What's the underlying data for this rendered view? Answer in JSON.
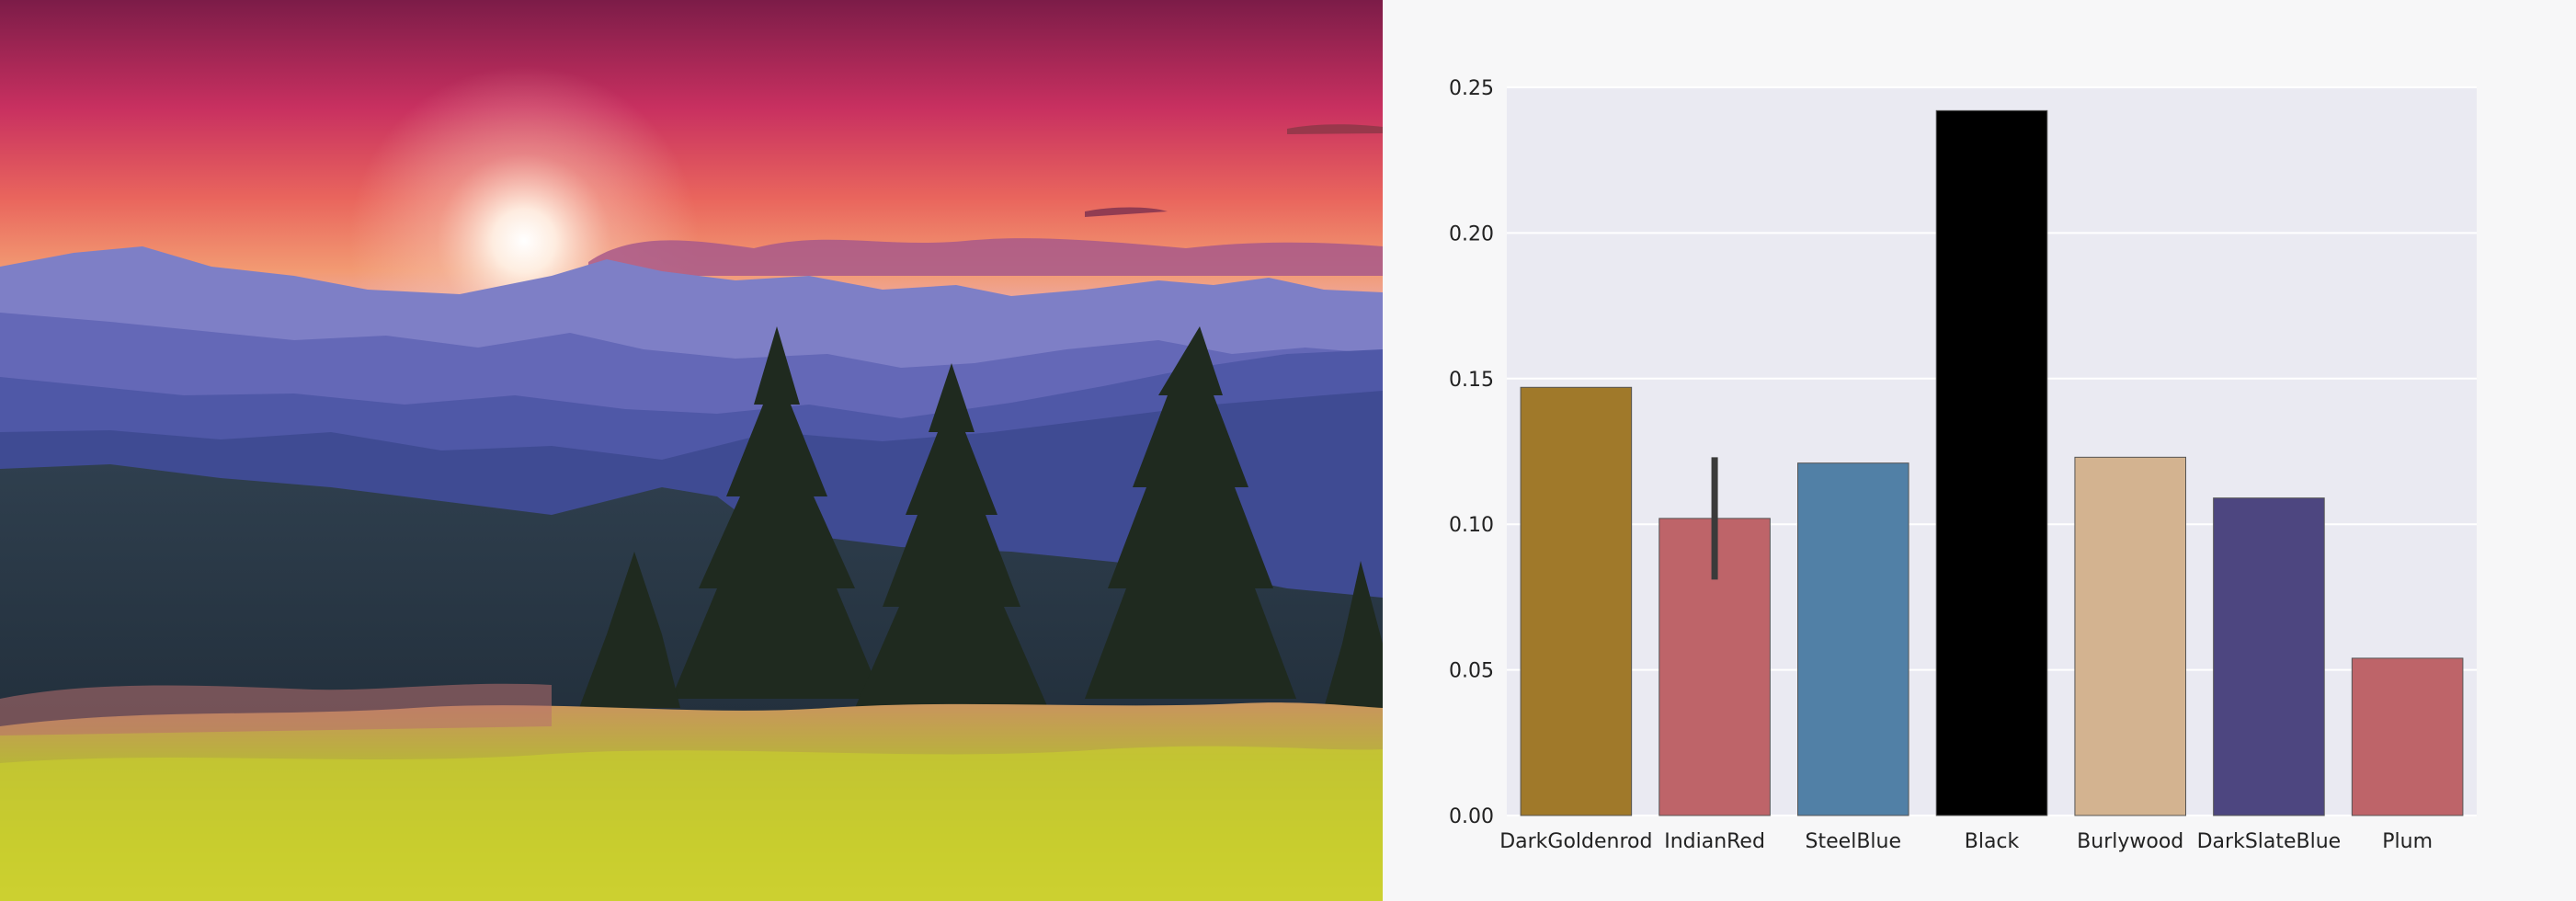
{
  "chart_data": {
    "type": "bar",
    "title": "",
    "xlabel": "",
    "ylabel": "",
    "categories": [
      "DarkGoldenrod",
      "IndianRed",
      "SteelBlue",
      "Black",
      "Burlywood",
      "DarkSlateBlue",
      "Plum"
    ],
    "values": [
      0.147,
      0.102,
      0.121,
      0.242,
      0.123,
      0.109,
      0.054
    ],
    "error_bars": [
      null,
      [
        0.081,
        0.123
      ],
      null,
      null,
      null,
      null,
      null
    ],
    "colors": [
      "#a0792a",
      "#be6469",
      "#5180a6",
      "#000000",
      "#d3b390",
      "#4d4680",
      "#be6469"
    ],
    "ylim": [
      0,
      0.25
    ],
    "yticks": [
      "0.00",
      "0.05",
      "0.10",
      "0.15",
      "0.20",
      "0.25"
    ],
    "grid": true,
    "legend": "none"
  },
  "theme": {
    "plot_background": "#eaeaf2",
    "grid_color": "#ffffff",
    "bar_edge": "#555555"
  }
}
